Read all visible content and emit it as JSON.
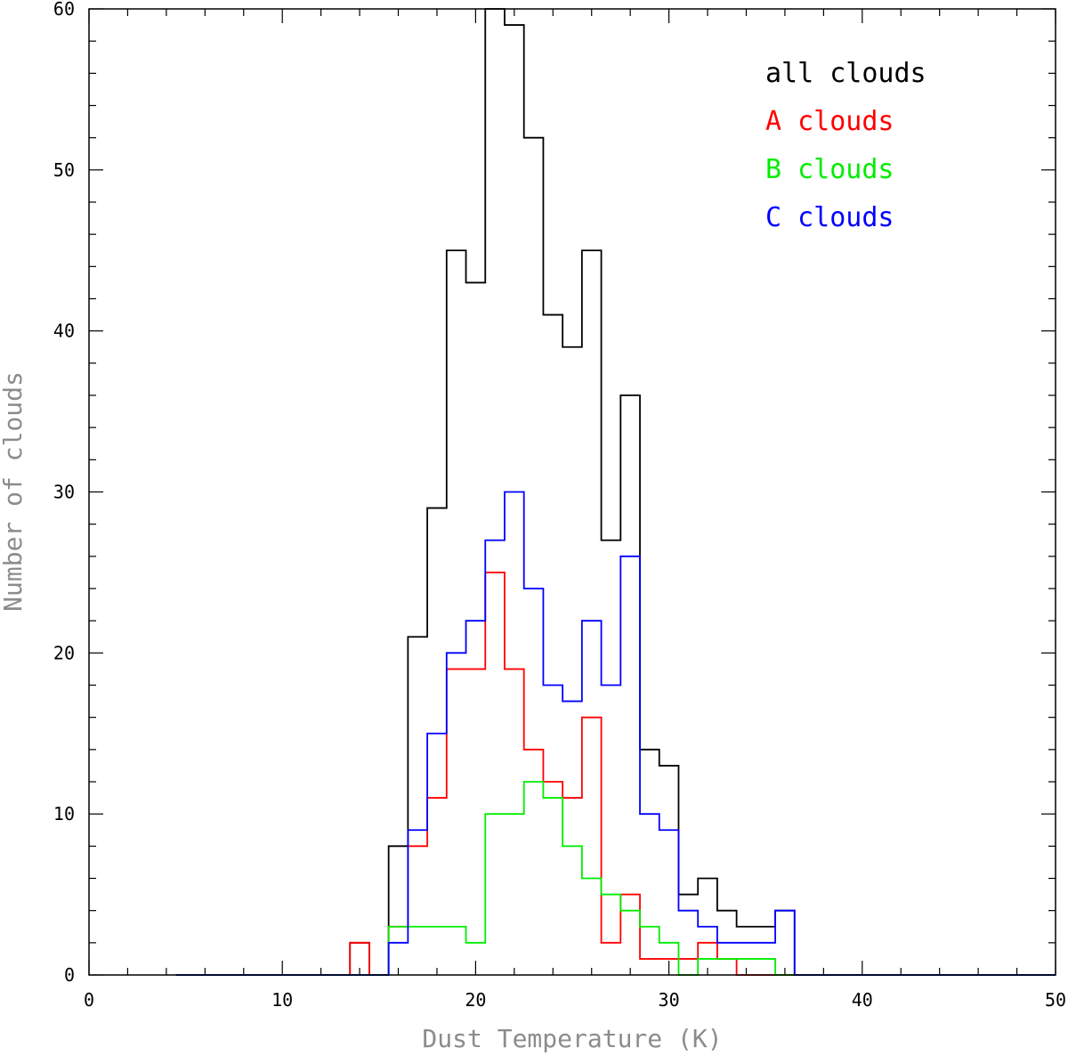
{
  "chart_data": {
    "type": "histogram",
    "title": "",
    "xlabel": "Dust Temperature (K)",
    "ylabel": "Number of clouds",
    "xlim": [
      0,
      50
    ],
    "ylim": [
      0,
      60
    ],
    "x_ticks": [
      0,
      10,
      20,
      30,
      40,
      50
    ],
    "y_ticks": [
      0,
      10,
      20,
      30,
      40,
      50,
      60
    ],
    "x_tick_labels": [
      "0",
      "10",
      "20",
      "30",
      "40",
      "50"
    ],
    "y_tick_labels": [
      "0",
      "10",
      "20",
      "30",
      "40",
      "50",
      "60"
    ],
    "grid": false,
    "legend_position": "top-right",
    "bins": {
      "start": 4.5,
      "width": 1,
      "edges": [
        4.5,
        5.5,
        6.5,
        7.5,
        8.5,
        9.5,
        10.5,
        11.5,
        12.5,
        13.5,
        14.5,
        15.5,
        16.5,
        17.5,
        18.5,
        19.5,
        20.5,
        21.5,
        22.5,
        23.5,
        24.5,
        25.5,
        26.5,
        27.5,
        28.5,
        29.5,
        30.5,
        31.5,
        32.5,
        33.5,
        34.5,
        35.5,
        36.5
      ]
    },
    "series": [
      {
        "name": "all clouds",
        "color": "#000000",
        "values": [
          0,
          0,
          0,
          0,
          0,
          0,
          0,
          0,
          0,
          2,
          0,
          8,
          21,
          29,
          45,
          43,
          60,
          59,
          52,
          41,
          39,
          45,
          27,
          36,
          14,
          13,
          5,
          6,
          4,
          3,
          3,
          4
        ]
      },
      {
        "name": "A clouds",
        "color": "#ff0000",
        "values": [
          0,
          0,
          0,
          0,
          0,
          0,
          0,
          0,
          0,
          2,
          0,
          3,
          8,
          11,
          19,
          19,
          25,
          19,
          14,
          12,
          11,
          16,
          2,
          5,
          1,
          1,
          1,
          2,
          1,
          0,
          0,
          0
        ]
      },
      {
        "name": "B clouds",
        "color": "#00ee00",
        "values": [
          0,
          0,
          0,
          0,
          0,
          0,
          0,
          0,
          0,
          0,
          0,
          3,
          3,
          3,
          3,
          2,
          10,
          10,
          12,
          11,
          8,
          6,
          5,
          4,
          3,
          2,
          0,
          1,
          1,
          1,
          1,
          0
        ]
      },
      {
        "name": "C clouds",
        "color": "#0000ff",
        "values": [
          0,
          0,
          0,
          0,
          0,
          0,
          0,
          0,
          0,
          0,
          0,
          2,
          9,
          15,
          20,
          22,
          27,
          30,
          24,
          18,
          17,
          22,
          18,
          26,
          10,
          9,
          4,
          3,
          2,
          2,
          2,
          4
        ]
      }
    ]
  }
}
